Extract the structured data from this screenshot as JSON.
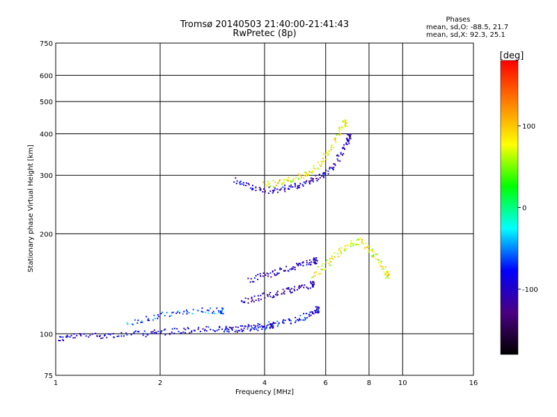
{
  "chart_data": {
    "type": "scatter",
    "title": "Tromsø 20140503 21:40:00-21:41:43",
    "subtitle": "RwPretec (8p)",
    "xlabel": "Frequency [MHz]",
    "ylabel": "Stationary phase Virtual Height [km]",
    "x_scale": "log",
    "y_scale": "log",
    "xlim": [
      1,
      16
    ],
    "ylim": [
      75,
      750
    ],
    "x_ticks": [
      1,
      2,
      4,
      6,
      8,
      10,
      16
    ],
    "y_ticks": [
      75,
      100,
      200,
      300,
      400,
      500,
      600,
      750
    ],
    "grid": true,
    "stats": {
      "heading": "Phases",
      "line_o": "mean, sd,O: -88.5, 21.7",
      "line_x": "mean, sd,X: 92.3, 25.1"
    },
    "colorbar": {
      "label": "[deg]",
      "range": [
        -180,
        180
      ],
      "ticks": [
        {
          "value": 100,
          "label": "100"
        },
        {
          "value": 0,
          "label": "0"
        },
        {
          "value": -100,
          "label": "-100"
        }
      ],
      "colors": [
        "#000000",
        "#4b0082",
        "#0000ff",
        "#00ffff",
        "#00ff00",
        "#ffff00",
        "#ff8000",
        "#ff0000"
      ]
    },
    "traces": [
      {
        "name": "",
        "points": [
          [
            1.0,
            96
          ],
          [
            1.1,
            98
          ],
          [
            1.3,
            99
          ],
          [
            1.5,
            99
          ],
          [
            1.8,
            100
          ],
          [
            2.0,
            101
          ],
          [
            2.3,
            102
          ],
          [
            2.6,
            103
          ],
          [
            3.0,
            103
          ],
          [
            3.4,
            103
          ],
          [
            3.8,
            104
          ],
          [
            4.2,
            106
          ]
        ],
        "phase": -95
      },
      {
        "name": "",
        "points": [
          [
            3.0,
            103
          ],
          [
            3.5,
            104
          ],
          [
            4.0,
            106
          ],
          [
            4.5,
            108
          ],
          [
            5.0,
            110
          ],
          [
            5.4,
            114
          ],
          [
            5.7,
            118
          ]
        ],
        "phase": -85
      },
      {
        "name": "",
        "points": [
          [
            3.3,
            290
          ],
          [
            3.6,
            278
          ],
          [
            4.0,
            270
          ],
          [
            4.4,
            272
          ],
          [
            4.8,
            276
          ],
          [
            5.2,
            283
          ],
          [
            5.6,
            293
          ],
          [
            6.0,
            305
          ],
          [
            6.4,
            325
          ],
          [
            6.8,
            360
          ],
          [
            7.0,
            390
          ]
        ],
        "phase": -100
      },
      {
        "name": "",
        "points": [
          [
            4.0,
            280
          ],
          [
            4.4,
            285
          ],
          [
            4.8,
            292
          ],
          [
            5.2,
            300
          ],
          [
            5.6,
            315
          ],
          [
            6.0,
            340
          ],
          [
            6.4,
            380
          ],
          [
            6.8,
            430
          ]
        ],
        "phase": 80
      },
      {
        "name": "",
        "points": [
          [
            3.4,
            125
          ],
          [
            3.8,
            128
          ],
          [
            4.2,
            131
          ],
          [
            4.6,
            134
          ],
          [
            5.0,
            137
          ],
          [
            5.5,
            141
          ]
        ],
        "phase": -110
      },
      {
        "name": "",
        "points": [
          [
            3.6,
            145
          ],
          [
            4.0,
            150
          ],
          [
            4.4,
            154
          ],
          [
            4.8,
            158
          ],
          [
            5.2,
            162
          ],
          [
            5.6,
            166
          ]
        ],
        "phase": -100
      },
      {
        "name": "",
        "points": [
          [
            5.5,
            150
          ],
          [
            6.0,
            160
          ],
          [
            6.5,
            175
          ],
          [
            7.0,
            185
          ],
          [
            7.5,
            190
          ],
          [
            8.0,
            180
          ],
          [
            8.5,
            170
          ],
          [
            9.0,
            150
          ]
        ],
        "phase": 75
      },
      {
        "name": "",
        "points": [
          [
            1.6,
            108
          ],
          [
            1.9,
            112
          ],
          [
            2.2,
            116
          ],
          [
            2.6,
            118
          ],
          [
            3.0,
            117
          ]
        ],
        "phase": -60
      }
    ]
  }
}
